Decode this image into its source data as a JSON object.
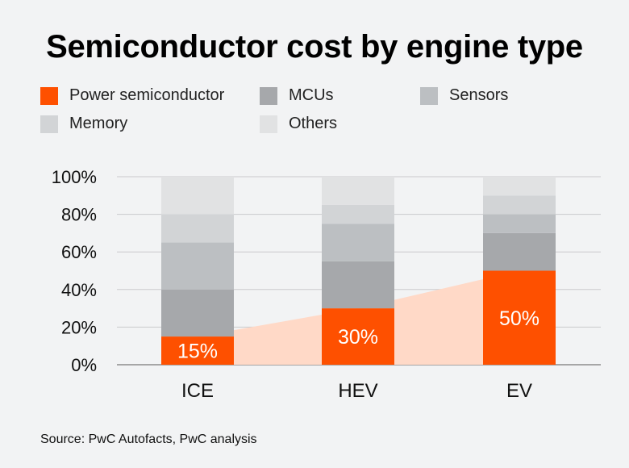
{
  "chart_data": {
    "type": "bar",
    "stacked": true,
    "title": "Semiconductor cost by engine type",
    "categories": [
      "ICE",
      "HEV",
      "EV"
    ],
    "series": [
      {
        "name": "Power semiconductor",
        "color": "#fe5000",
        "values": [
          15,
          30,
          50
        ]
      },
      {
        "name": "MCUs",
        "color": "#a6a8ab",
        "values": [
          25,
          25,
          20
        ]
      },
      {
        "name": "Sensors",
        "color": "#bcbfc2",
        "values": [
          25,
          20,
          10
        ]
      },
      {
        "name": "Memory",
        "color": "#d2d4d6",
        "values": [
          15,
          10,
          10
        ]
      },
      {
        "name": "Others",
        "color": "#e1e2e3",
        "values": [
          20,
          15,
          10
        ]
      }
    ],
    "data_labels": [
      "15%",
      "30%",
      "50%"
    ],
    "area_overlay": {
      "series": "Power semiconductor",
      "color": "#ffd9c7"
    },
    "yticks": [
      "0%",
      "20%",
      "40%",
      "60%",
      "80%",
      "100%"
    ],
    "ylim": [
      0,
      100
    ],
    "grid": true,
    "legend_position": "top",
    "source": "Source: PwC Autofacts, PwC analysis"
  }
}
